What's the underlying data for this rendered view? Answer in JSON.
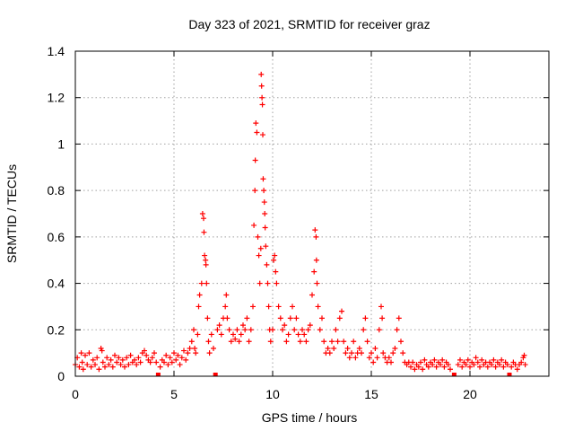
{
  "chart_data": {
    "type": "scatter",
    "title": "Day 323 of 2021, SRMTID for receiver graz",
    "xlabel": "GPS time / hours",
    "ylabel": "SRMTID / TECUs",
    "xlim": [
      0,
      24
    ],
    "ylim": [
      0,
      1.4
    ],
    "x_ticks": [
      0,
      5,
      10,
      15,
      20
    ],
    "y_ticks": [
      0,
      0.2,
      0.4,
      0.6,
      0.8,
      1,
      1.2,
      1.4
    ],
    "x_tick_labels": [
      "0",
      "5",
      "10",
      "15",
      "20"
    ],
    "y_tick_labels": [
      "0",
      "0.2",
      "0.4",
      "0.6",
      "0.8",
      "1",
      "1.2",
      "1.4"
    ],
    "grid": true,
    "marker": "+",
    "series_color": "#ff0000",
    "gap_markers_x": [
      4.2,
      7.1,
      19.2,
      22.0
    ],
    "series": [
      {
        "name": "SRMTID",
        "points": [
          [
            0.0,
            0.05
          ],
          [
            0.1,
            0.08
          ],
          [
            0.2,
            0.04
          ],
          [
            0.3,
            0.1
          ],
          [
            0.35,
            0.06
          ],
          [
            0.4,
            0.03
          ],
          [
            0.5,
            0.09
          ],
          [
            0.6,
            0.05
          ],
          [
            0.7,
            0.1
          ],
          [
            0.8,
            0.04
          ],
          [
            0.9,
            0.07
          ],
          [
            1.0,
            0.05
          ],
          [
            1.1,
            0.08
          ],
          [
            1.2,
            0.03
          ],
          [
            1.3,
            0.12
          ],
          [
            1.35,
            0.11
          ],
          [
            1.4,
            0.06
          ],
          [
            1.5,
            0.04
          ],
          [
            1.6,
            0.08
          ],
          [
            1.7,
            0.05
          ],
          [
            1.8,
            0.07
          ],
          [
            1.9,
            0.04
          ],
          [
            2.0,
            0.09
          ],
          [
            2.1,
            0.06
          ],
          [
            2.2,
            0.08
          ],
          [
            2.3,
            0.05
          ],
          [
            2.4,
            0.07
          ],
          [
            2.5,
            0.04
          ],
          [
            2.6,
            0.08
          ],
          [
            2.7,
            0.05
          ],
          [
            2.8,
            0.09
          ],
          [
            2.9,
            0.06
          ],
          [
            3.0,
            0.07
          ],
          [
            3.1,
            0.05
          ],
          [
            3.2,
            0.08
          ],
          [
            3.3,
            0.06
          ],
          [
            3.4,
            0.1
          ],
          [
            3.5,
            0.11
          ],
          [
            3.6,
            0.09
          ],
          [
            3.7,
            0.07
          ],
          [
            3.8,
            0.06
          ],
          [
            3.9,
            0.08
          ],
          [
            4.0,
            0.1
          ],
          [
            4.1,
            0.06
          ],
          [
            4.3,
            0.04
          ],
          [
            4.4,
            0.07
          ],
          [
            4.5,
            0.06
          ],
          [
            4.6,
            0.09
          ],
          [
            4.7,
            0.05
          ],
          [
            4.8,
            0.08
          ],
          [
            4.9,
            0.06
          ],
          [
            5.0,
            0.1
          ],
          [
            5.1,
            0.07
          ],
          [
            5.2,
            0.09
          ],
          [
            5.3,
            0.05
          ],
          [
            5.4,
            0.08
          ],
          [
            5.5,
            0.11
          ],
          [
            5.6,
            0.07
          ],
          [
            5.7,
            0.1
          ],
          [
            5.8,
            0.12
          ],
          [
            5.9,
            0.15
          ],
          [
            6.0,
            0.2
          ],
          [
            6.05,
            0.12
          ],
          [
            6.1,
            0.1
          ],
          [
            6.2,
            0.18
          ],
          [
            6.25,
            0.3
          ],
          [
            6.3,
            0.35
          ],
          [
            6.4,
            0.4
          ],
          [
            6.45,
            0.7
          ],
          [
            6.5,
            0.68
          ],
          [
            6.52,
            0.62
          ],
          [
            6.55,
            0.52
          ],
          [
            6.6,
            0.5
          ],
          [
            6.62,
            0.48
          ],
          [
            6.65,
            0.4
          ],
          [
            6.7,
            0.25
          ],
          [
            6.75,
            0.15
          ],
          [
            6.8,
            0.1
          ],
          [
            6.9,
            0.18
          ],
          [
            7.0,
            0.12
          ],
          [
            7.2,
            0.2
          ],
          [
            7.3,
            0.22
          ],
          [
            7.4,
            0.18
          ],
          [
            7.5,
            0.25
          ],
          [
            7.6,
            0.3
          ],
          [
            7.65,
            0.35
          ],
          [
            7.7,
            0.25
          ],
          [
            7.8,
            0.2
          ],
          [
            7.9,
            0.15
          ],
          [
            8.0,
            0.18
          ],
          [
            8.1,
            0.16
          ],
          [
            8.2,
            0.2
          ],
          [
            8.3,
            0.15
          ],
          [
            8.4,
            0.18
          ],
          [
            8.5,
            0.22
          ],
          [
            8.6,
            0.2
          ],
          [
            8.7,
            0.25
          ],
          [
            8.8,
            0.15
          ],
          [
            8.9,
            0.2
          ],
          [
            9.0,
            0.3
          ],
          [
            9.05,
            0.65
          ],
          [
            9.1,
            0.8
          ],
          [
            9.12,
            0.93
          ],
          [
            9.15,
            1.09
          ],
          [
            9.2,
            1.05
          ],
          [
            9.25,
            0.6
          ],
          [
            9.3,
            0.52
          ],
          [
            9.35,
            0.4
          ],
          [
            9.4,
            0.55
          ],
          [
            9.42,
            1.3
          ],
          [
            9.44,
            1.25
          ],
          [
            9.46,
            1.2
          ],
          [
            9.48,
            1.17
          ],
          [
            9.5,
            1.04
          ],
          [
            9.52,
            0.85
          ],
          [
            9.55,
            0.8
          ],
          [
            9.58,
            0.75
          ],
          [
            9.6,
            0.7
          ],
          [
            9.62,
            0.64
          ],
          [
            9.65,
            0.56
          ],
          [
            9.7,
            0.48
          ],
          [
            9.75,
            0.4
          ],
          [
            9.8,
            0.3
          ],
          [
            9.85,
            0.2
          ],
          [
            9.9,
            0.15
          ],
          [
            10.0,
            0.2
          ],
          [
            10.05,
            0.5
          ],
          [
            10.1,
            0.52
          ],
          [
            10.15,
            0.45
          ],
          [
            10.2,
            0.4
          ],
          [
            10.3,
            0.3
          ],
          [
            10.4,
            0.25
          ],
          [
            10.5,
            0.2
          ],
          [
            10.6,
            0.22
          ],
          [
            10.7,
            0.15
          ],
          [
            10.8,
            0.18
          ],
          [
            10.9,
            0.25
          ],
          [
            11.0,
            0.3
          ],
          [
            11.1,
            0.2
          ],
          [
            11.2,
            0.25
          ],
          [
            11.3,
            0.18
          ],
          [
            11.4,
            0.15
          ],
          [
            11.5,
            0.2
          ],
          [
            11.6,
            0.18
          ],
          [
            11.7,
            0.15
          ],
          [
            11.8,
            0.2
          ],
          [
            11.9,
            0.22
          ],
          [
            12.0,
            0.35
          ],
          [
            12.1,
            0.45
          ],
          [
            12.15,
            0.63
          ],
          [
            12.2,
            0.6
          ],
          [
            12.22,
            0.5
          ],
          [
            12.25,
            0.4
          ],
          [
            12.3,
            0.3
          ],
          [
            12.4,
            0.2
          ],
          [
            12.5,
            0.25
          ],
          [
            12.6,
            0.15
          ],
          [
            12.7,
            0.1
          ],
          [
            12.8,
            0.12
          ],
          [
            12.9,
            0.1
          ],
          [
            13.0,
            0.15
          ],
          [
            13.1,
            0.12
          ],
          [
            13.2,
            0.2
          ],
          [
            13.3,
            0.15
          ],
          [
            13.4,
            0.25
          ],
          [
            13.5,
            0.28
          ],
          [
            13.6,
            0.15
          ],
          [
            13.7,
            0.1
          ],
          [
            13.8,
            0.12
          ],
          [
            13.9,
            0.08
          ],
          [
            14.0,
            0.1
          ],
          [
            14.1,
            0.15
          ],
          [
            14.2,
            0.08
          ],
          [
            14.3,
            0.1
          ],
          [
            14.4,
            0.12
          ],
          [
            14.5,
            0.1
          ],
          [
            14.6,
            0.2
          ],
          [
            14.7,
            0.25
          ],
          [
            14.8,
            0.15
          ],
          [
            14.9,
            0.08
          ],
          [
            15.0,
            0.1
          ],
          [
            15.1,
            0.06
          ],
          [
            15.2,
            0.12
          ],
          [
            15.3,
            0.08
          ],
          [
            15.4,
            0.2
          ],
          [
            15.5,
            0.3
          ],
          [
            15.55,
            0.25
          ],
          [
            15.6,
            0.1
          ],
          [
            15.7,
            0.08
          ],
          [
            15.8,
            0.06
          ],
          [
            15.9,
            0.08
          ],
          [
            16.0,
            0.06
          ],
          [
            16.1,
            0.1
          ],
          [
            16.2,
            0.12
          ],
          [
            16.3,
            0.2
          ],
          [
            16.4,
            0.25
          ],
          [
            16.5,
            0.15
          ],
          [
            16.6,
            0.1
          ],
          [
            16.7,
            0.06
          ],
          [
            16.8,
            0.05
          ],
          [
            16.9,
            0.06
          ],
          [
            17.0,
            0.04
          ],
          [
            17.1,
            0.06
          ],
          [
            17.2,
            0.03
          ],
          [
            17.3,
            0.05
          ],
          [
            17.4,
            0.04
          ],
          [
            17.5,
            0.06
          ],
          [
            17.6,
            0.03
          ],
          [
            17.7,
            0.07
          ],
          [
            17.8,
            0.05
          ],
          [
            17.9,
            0.04
          ],
          [
            18.0,
            0.06
          ],
          [
            18.1,
            0.05
          ],
          [
            18.2,
            0.07
          ],
          [
            18.3,
            0.04
          ],
          [
            18.4,
            0.06
          ],
          [
            18.5,
            0.05
          ],
          [
            18.6,
            0.07
          ],
          [
            18.7,
            0.04
          ],
          [
            18.8,
            0.06
          ],
          [
            18.9,
            0.05
          ],
          [
            19.0,
            0.03
          ],
          [
            19.4,
            0.05
          ],
          [
            19.5,
            0.07
          ],
          [
            19.6,
            0.04
          ],
          [
            19.7,
            0.06
          ],
          [
            19.8,
            0.05
          ],
          [
            19.9,
            0.07
          ],
          [
            20.0,
            0.04
          ],
          [
            20.1,
            0.06
          ],
          [
            20.2,
            0.05
          ],
          [
            20.3,
            0.08
          ],
          [
            20.4,
            0.06
          ],
          [
            20.5,
            0.04
          ],
          [
            20.6,
            0.07
          ],
          [
            20.7,
            0.05
          ],
          [
            20.8,
            0.06
          ],
          [
            20.9,
            0.04
          ],
          [
            21.0,
            0.06
          ],
          [
            21.1,
            0.05
          ],
          [
            21.2,
            0.07
          ],
          [
            21.3,
            0.04
          ],
          [
            21.4,
            0.06
          ],
          [
            21.5,
            0.05
          ],
          [
            21.6,
            0.07
          ],
          [
            21.7,
            0.04
          ],
          [
            21.8,
            0.06
          ],
          [
            21.9,
            0.05
          ],
          [
            22.1,
            0.04
          ],
          [
            22.2,
            0.06
          ],
          [
            22.3,
            0.05
          ],
          [
            22.4,
            0.03
          ],
          [
            22.5,
            0.05
          ],
          [
            22.6,
            0.06
          ],
          [
            22.7,
            0.08
          ],
          [
            22.75,
            0.09
          ],
          [
            22.8,
            0.05
          ]
        ]
      }
    ]
  }
}
